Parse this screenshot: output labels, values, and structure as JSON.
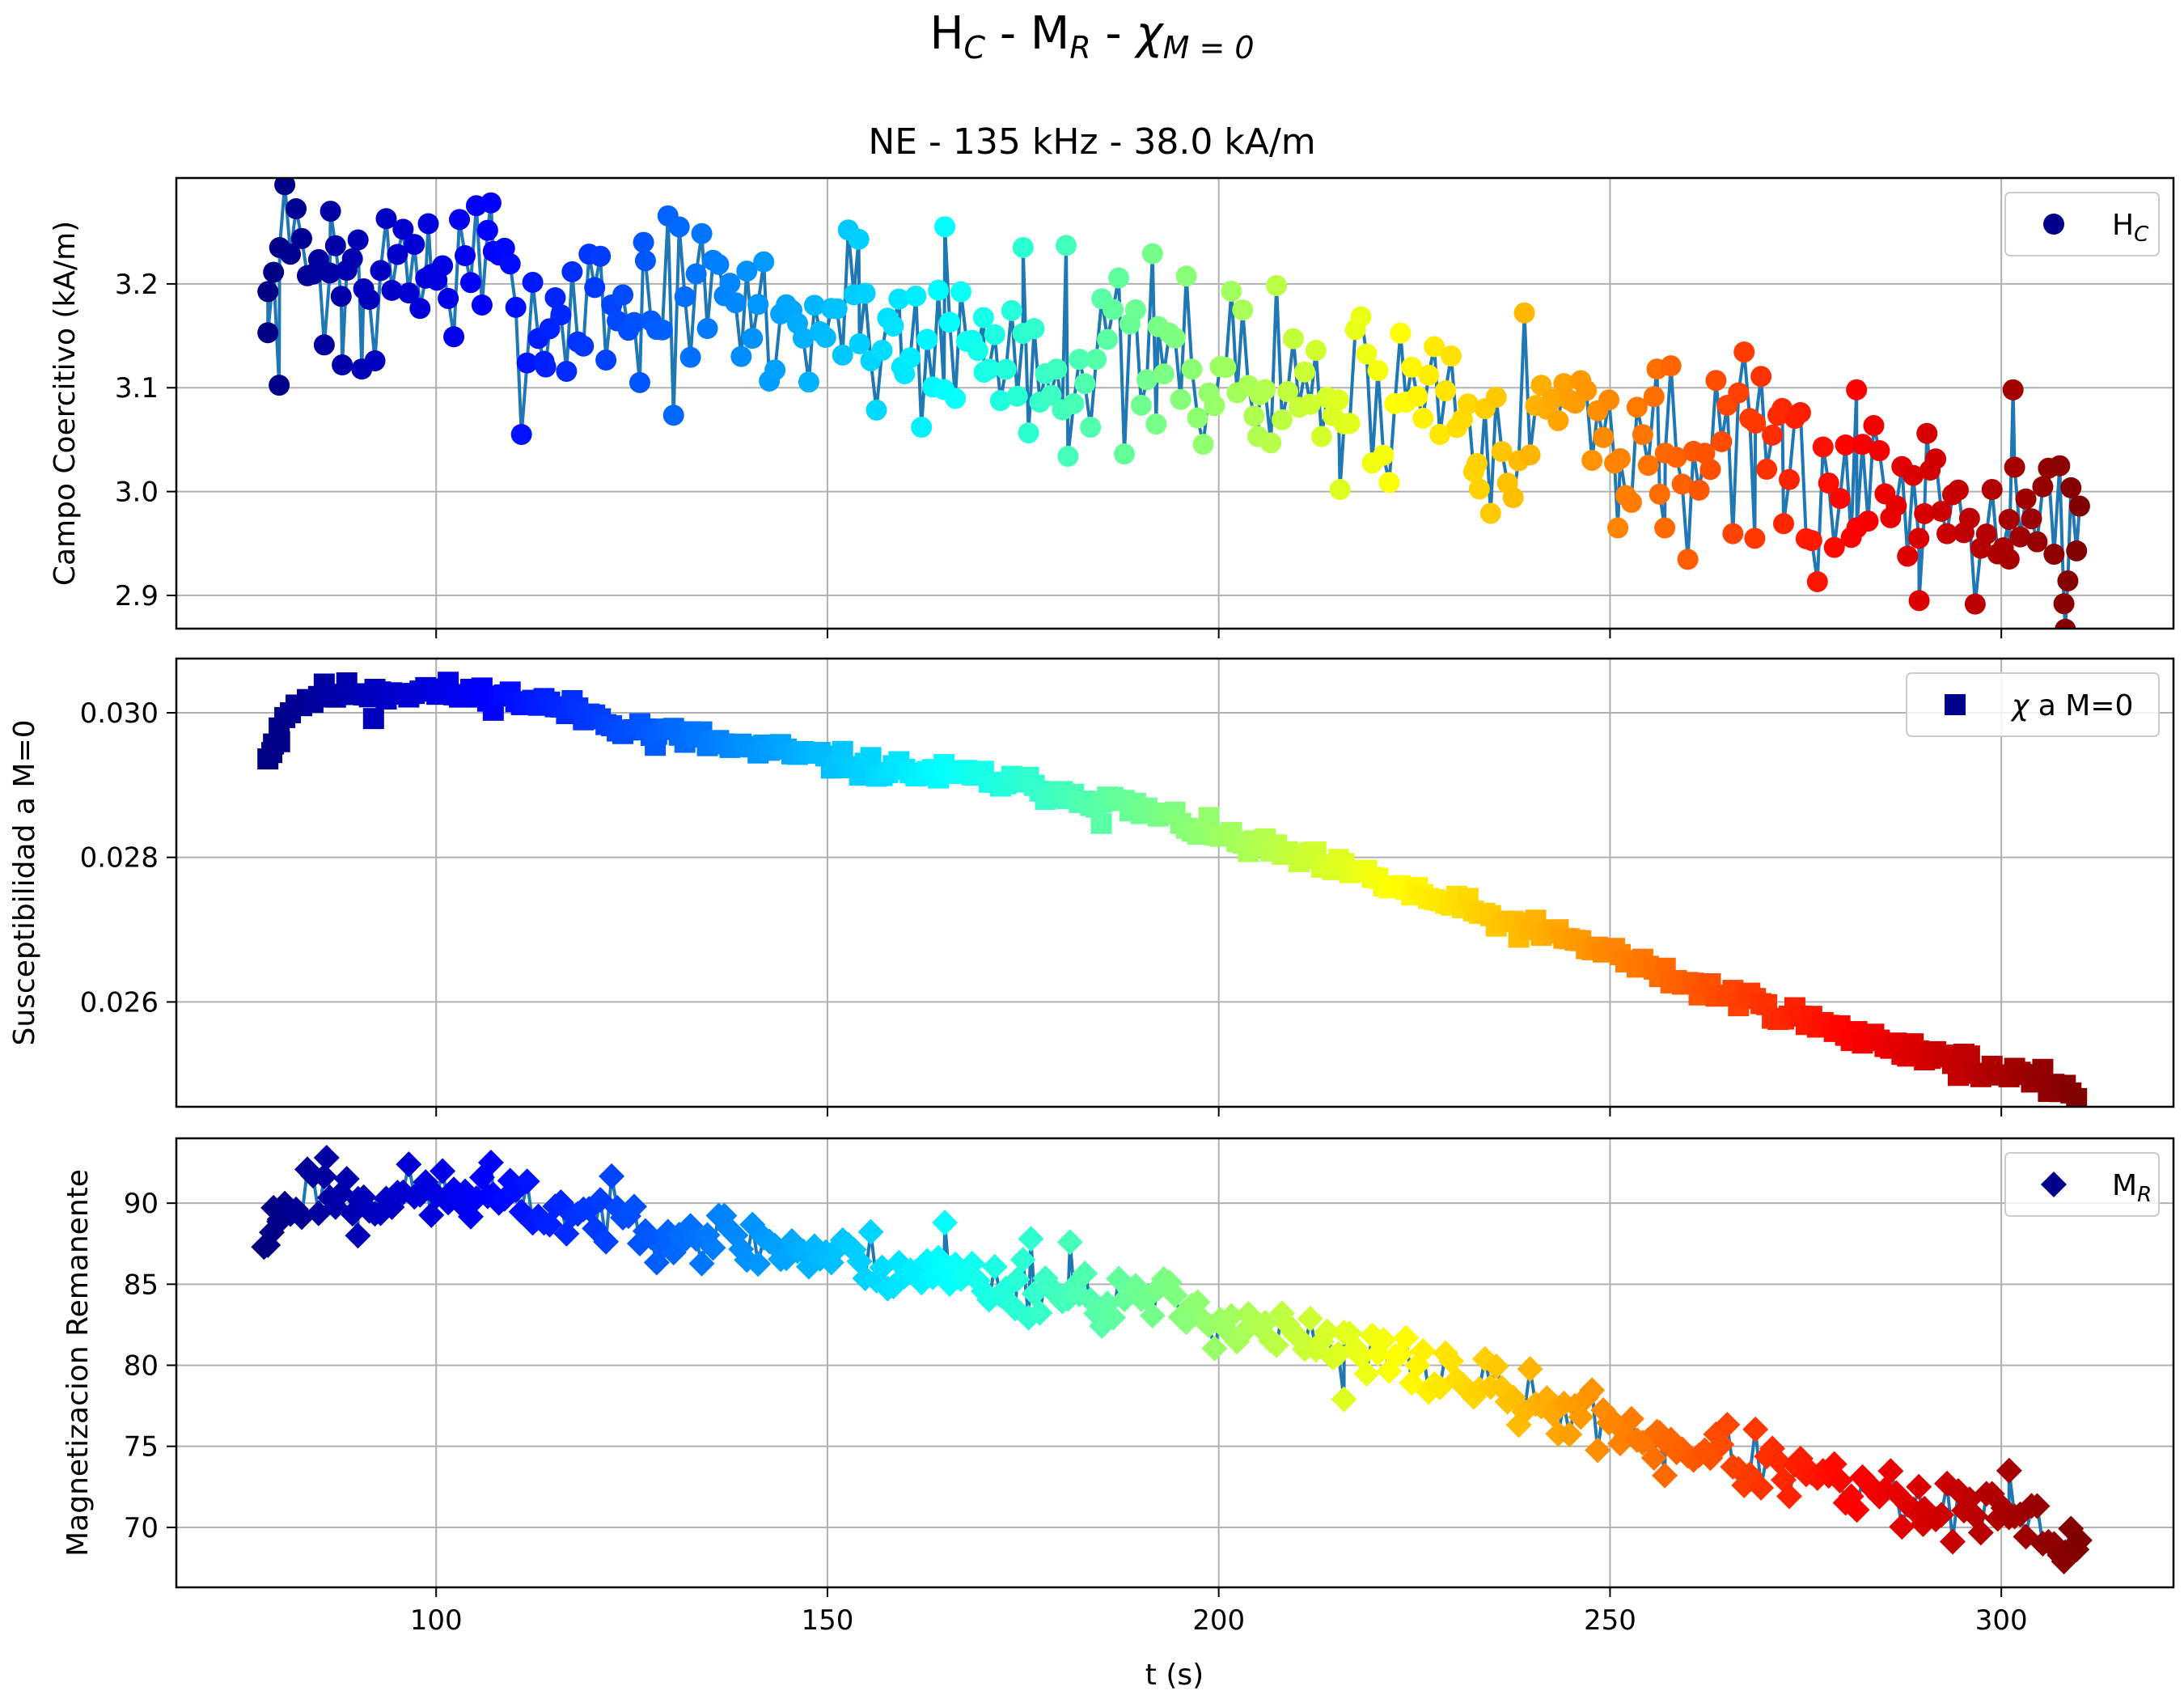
{
  "suptitle": {
    "parts": [
      "H",
      "C",
      " - M",
      "R",
      " - ",
      "χ",
      "M = 0"
    ]
  },
  "title": "NE - 135 kHz - 38.0 kA/m",
  "xlabel": "t (s)",
  "colors": {
    "line": "#1f77b4",
    "legend_marker": "#00008b",
    "colormap": "jet"
  },
  "chart_data": [
    {
      "type": "line",
      "panel": "Hc",
      "marker": "circle",
      "legend_main": "H",
      "legend_sub": "C",
      "legend_position": "top-right",
      "ylabel": "Campo Coercitivo (kA/m)",
      "xlim": [
        66.8,
        322
      ],
      "ylim": [
        2.868,
        3.302
      ],
      "xticks": [
        100,
        150,
        200,
        250,
        300
      ],
      "yticks": [
        2.9,
        3.0,
        3.1,
        3.2
      ],
      "ytick_labels": [
        "2.9",
        "3.0",
        "3.1",
        "3.2"
      ],
      "grid": true,
      "anchors": [
        [
          78,
          3.16
        ],
        [
          82,
          3.23
        ],
        [
          87,
          3.21
        ],
        [
          90,
          3.21
        ],
        [
          95,
          3.2
        ],
        [
          100,
          3.21
        ],
        [
          105,
          3.21
        ],
        [
          110,
          3.17
        ],
        [
          115,
          3.17
        ],
        [
          120,
          3.19
        ],
        [
          125,
          3.17
        ],
        [
          130,
          3.18
        ],
        [
          135,
          3.18
        ],
        [
          140,
          3.17
        ],
        [
          145,
          3.16
        ],
        [
          150,
          3.17
        ],
        [
          155,
          3.16
        ],
        [
          160,
          3.15
        ],
        [
          165,
          3.14
        ],
        [
          170,
          3.14
        ],
        [
          175,
          3.13
        ],
        [
          180,
          3.12
        ],
        [
          185,
          3.12
        ],
        [
          190,
          3.12
        ],
        [
          195,
          3.13
        ],
        [
          200,
          3.12
        ],
        [
          205,
          3.11
        ],
        [
          210,
          3.1
        ],
        [
          215,
          3.09
        ],
        [
          220,
          3.1
        ],
        [
          225,
          3.1
        ],
        [
          230,
          3.1
        ],
        [
          235,
          3.07
        ],
        [
          240,
          3.08
        ],
        [
          245,
          3.08
        ],
        [
          250,
          3.06
        ],
        [
          255,
          3.05
        ],
        [
          260,
          3.03
        ],
        [
          265,
          3.03
        ],
        [
          270,
          3.02
        ],
        [
          275,
          3.01
        ],
        [
          280,
          3.01
        ],
        [
          285,
          3.0
        ],
        [
          290,
          3.0
        ],
        [
          295,
          3.0
        ],
        [
          300,
          2.99
        ],
        [
          305,
          2.99
        ],
        [
          309,
          2.96
        ]
      ],
      "spread": 0.045,
      "outliers": [
        [
          78.5,
          3.153
        ],
        [
          80,
          3.235
        ],
        [
          86.5,
          3.27
        ],
        [
          88,
          3.122
        ],
        [
          90.5,
          3.118
        ],
        [
          99,
          3.258
        ],
        [
          107,
          3.278
        ],
        [
          114,
          3.12
        ],
        [
          126.5,
          3.24
        ],
        [
          154,
          3.243
        ],
        [
          159.5,
          3.12
        ],
        [
          165,
          3.255
        ],
        [
          170,
          3.115
        ],
        [
          175,
          3.235
        ],
        [
          180.5,
          3.237
        ],
        [
          192,
          3.065
        ],
        [
          205,
          3.053
        ],
        [
          215.5,
          3.002
        ],
        [
          233,
          3.027
        ],
        [
          251,
          2.965
        ],
        [
          256,
          3.118
        ],
        [
          257,
          2.965
        ],
        [
          268.5,
          2.955
        ],
        [
          272,
          3.08
        ],
        [
          281.5,
          3.098
        ],
        [
          289.5,
          2.895
        ],
        [
          290.5,
          3.056
        ],
        [
          301,
          2.935
        ],
        [
          301.5,
          3.098
        ],
        [
          308,
          2.892
        ],
        [
          308.5,
          2.914
        ],
        [
          310,
          2.986
        ]
      ],
      "jitter_seed": 7
    },
    {
      "type": "scatter",
      "panel": "chi",
      "marker": "square",
      "legend_symbol": "χ",
      "legend_main": " a M=0",
      "legend_position": "top-right",
      "ylabel": "Susceptibilidad a M=0",
      "xlim": [
        66.8,
        322
      ],
      "ylim": [
        0.02455,
        0.03075
      ],
      "xticks": [
        100,
        150,
        200,
        250,
        300
      ],
      "yticks": [
        0.026,
        0.028,
        0.03
      ],
      "ytick_labels": [
        "0.026",
        "0.028",
        "0.030"
      ],
      "grid": true,
      "anchors": [
        [
          79,
          0.02945
        ],
        [
          80,
          0.0299
        ],
        [
          82,
          0.0301
        ],
        [
          85,
          0.03025
        ],
        [
          90,
          0.0303
        ],
        [
          95,
          0.0303
        ],
        [
          100,
          0.0303
        ],
        [
          105,
          0.03025
        ],
        [
          110,
          0.0302
        ],
        [
          115,
          0.0301
        ],
        [
          120,
          0.02995
        ],
        [
          125,
          0.0298
        ],
        [
          130,
          0.0297
        ],
        [
          135,
          0.0296
        ],
        [
          140,
          0.0295
        ],
        [
          145,
          0.02945
        ],
        [
          150,
          0.02935
        ],
        [
          155,
          0.02925
        ],
        [
          160,
          0.0292
        ],
        [
          165,
          0.02915
        ],
        [
          170,
          0.0291
        ],
        [
          175,
          0.029
        ],
        [
          180,
          0.0289
        ],
        [
          185,
          0.0288
        ],
        [
          190,
          0.02865
        ],
        [
          195,
          0.0285
        ],
        [
          200,
          0.0283
        ],
        [
          205,
          0.02815
        ],
        [
          210,
          0.028
        ],
        [
          215,
          0.02785
        ],
        [
          220,
          0.0277
        ],
        [
          225,
          0.0275
        ],
        [
          230,
          0.02735
        ],
        [
          235,
          0.02715
        ],
        [
          240,
          0.027
        ],
        [
          245,
          0.02685
        ],
        [
          250,
          0.0267
        ],
        [
          255,
          0.02645
        ],
        [
          260,
          0.02625
        ],
        [
          265,
          0.0261
        ],
        [
          270,
          0.02595
        ],
        [
          275,
          0.02575
        ],
        [
          280,
          0.02555
        ],
        [
          285,
          0.02545
        ],
        [
          290,
          0.0253
        ],
        [
          295,
          0.02515
        ],
        [
          300,
          0.025
        ],
        [
          305,
          0.0249
        ],
        [
          310,
          0.02475
        ]
      ],
      "spread": 7e-05,
      "outliers": [
        [
          79,
          0.02945
        ],
        [
          80,
          0.0296
        ],
        [
          92,
          0.02992
        ],
        [
          128,
          0.02955
        ],
        [
          185,
          0.02847
        ]
      ],
      "jitter_seed": 11
    },
    {
      "type": "line",
      "panel": "Mr",
      "marker": "diamond",
      "legend_main": "M",
      "legend_sub": "R",
      "legend_position": "top-right",
      "ylabel": "Magnetizacion Remanente",
      "xlim": [
        66.8,
        322
      ],
      "ylim": [
        66.3,
        94.0
      ],
      "xticks": [
        100,
        150,
        200,
        250,
        300
      ],
      "xtick_labels": [
        "100",
        "150",
        "200",
        "250",
        "300"
      ],
      "yticks": [
        70,
        75,
        80,
        85,
        90
      ],
      "ytick_labels": [
        "70",
        "75",
        "80",
        "85",
        "90"
      ],
      "grid": true,
      "anchors": [
        [
          78,
          87.5
        ],
        [
          80,
          89.5
        ],
        [
          84,
          91.0
        ],
        [
          88,
          90.5
        ],
        [
          92,
          90.5
        ],
        [
          96,
          90.5
        ],
        [
          100,
          90.5
        ],
        [
          105,
          90.5
        ],
        [
          110,
          89.8
        ],
        [
          115,
          89.5
        ],
        [
          120,
          89.3
        ],
        [
          125,
          89.0
        ],
        [
          130,
          88.5
        ],
        [
          135,
          88.0
        ],
        [
          140,
          87.6
        ],
        [
          145,
          87.2
        ],
        [
          150,
          86.8
        ],
        [
          155,
          86.5
        ],
        [
          160,
          86.0
        ],
        [
          165,
          85.6
        ],
        [
          170,
          85.2
        ],
        [
          175,
          85.0
        ],
        [
          180,
          84.5
        ],
        [
          185,
          84.3
        ],
        [
          190,
          84.0
        ],
        [
          195,
          83.5
        ],
        [
          200,
          83.0
        ],
        [
          205,
          82.5
        ],
        [
          210,
          81.5
        ],
        [
          215,
          81.0
        ],
        [
          220,
          80.5
        ],
        [
          225,
          80.0
        ],
        [
          230,
          79.5
        ],
        [
          235,
          78.5
        ],
        [
          240,
          77.5
        ],
        [
          245,
          77.0
        ],
        [
          250,
          76.5
        ],
        [
          255,
          75.5
        ],
        [
          260,
          75.0
        ],
        [
          265,
          74.5
        ],
        [
          270,
          73.8
        ],
        [
          275,
          73.0
        ],
        [
          280,
          72.3
        ],
        [
          285,
          71.8
        ],
        [
          290,
          71.2
        ],
        [
          295,
          70.8
        ],
        [
          300,
          70.5
        ],
        [
          305,
          70.0
        ],
        [
          310,
          69.0
        ]
      ],
      "spread": 0.9,
      "outliers": [
        [
          78,
          87.3
        ],
        [
          79,
          88.2
        ],
        [
          80,
          89.0
        ],
        [
          86,
          92.8
        ],
        [
          90,
          88.0
        ],
        [
          107,
          92.5
        ],
        [
          165,
          88.8
        ],
        [
          174,
          83.5
        ],
        [
          176,
          87.8
        ],
        [
          181,
          87.6
        ],
        [
          216,
          77.9
        ],
        [
          256,
          75.9
        ],
        [
          257,
          73.2
        ],
        [
          290,
          70.2
        ],
        [
          301,
          73.5
        ],
        [
          308,
          67.9
        ],
        [
          310,
          69.2
        ]
      ],
      "jitter_seed": 23
    }
  ]
}
